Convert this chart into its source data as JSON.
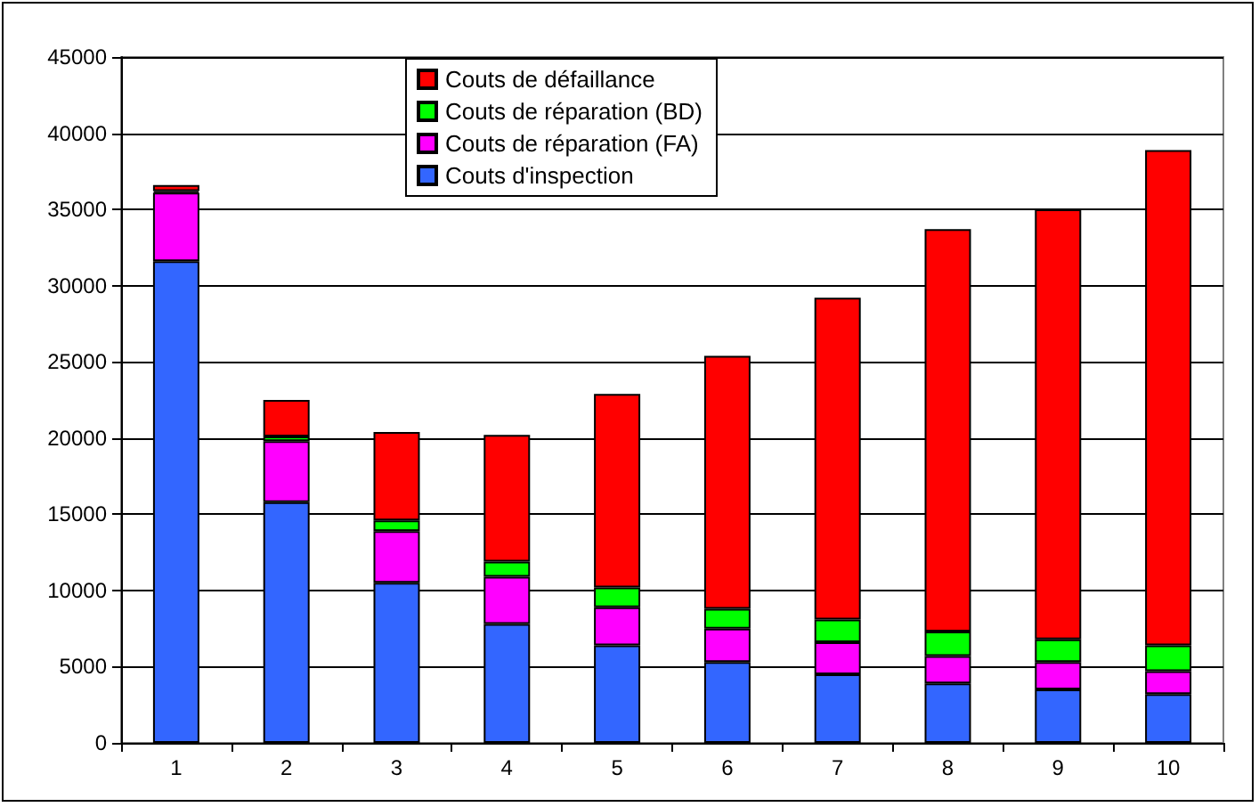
{
  "chart_data": {
    "type": "bar",
    "stacked": true,
    "categories": [
      "1",
      "2",
      "3",
      "4",
      "5",
      "6",
      "7",
      "8",
      "9",
      "10"
    ],
    "series": [
      {
        "name": "Couts d'inspection",
        "color": "#3366ff",
        "values": [
          31600,
          15800,
          10500,
          7800,
          6400,
          5300,
          4500,
          3900,
          3500,
          3200
        ]
      },
      {
        "name": "Couts de réparation (FA)",
        "color": "#ff00ff",
        "values": [
          4500,
          4000,
          3400,
          3100,
          2500,
          2200,
          2100,
          1800,
          1800,
          1500
        ]
      },
      {
        "name": "Couts de réparation (BD)",
        "color": "#00ff00",
        "values": [
          100,
          300,
          700,
          1000,
          1300,
          1300,
          1500,
          1600,
          1500,
          1700
        ]
      },
      {
        "name": "Couts de défaillance",
        "color": "#ff0000",
        "values": [
          400,
          2400,
          5800,
          8300,
          12700,
          16600,
          21100,
          26400,
          28200,
          32500
        ]
      }
    ],
    "ylim": [
      0,
      45000
    ],
    "yticks": [
      0,
      5000,
      10000,
      15000,
      20000,
      25000,
      30000,
      35000,
      40000,
      45000
    ],
    "grid": "y",
    "legend": "top"
  }
}
